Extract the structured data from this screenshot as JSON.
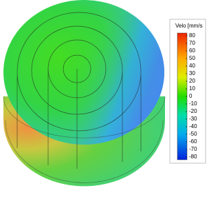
{
  "colorbar": {
    "title": "Velo [mm/s",
    "lim": [
      -80,
      80
    ],
    "ticks": [
      80,
      70,
      60,
      50,
      40,
      30,
      20,
      10,
      0,
      -10,
      -20,
      -30,
      -40,
      -50,
      -60,
      -70,
      -80
    ]
  }
}
